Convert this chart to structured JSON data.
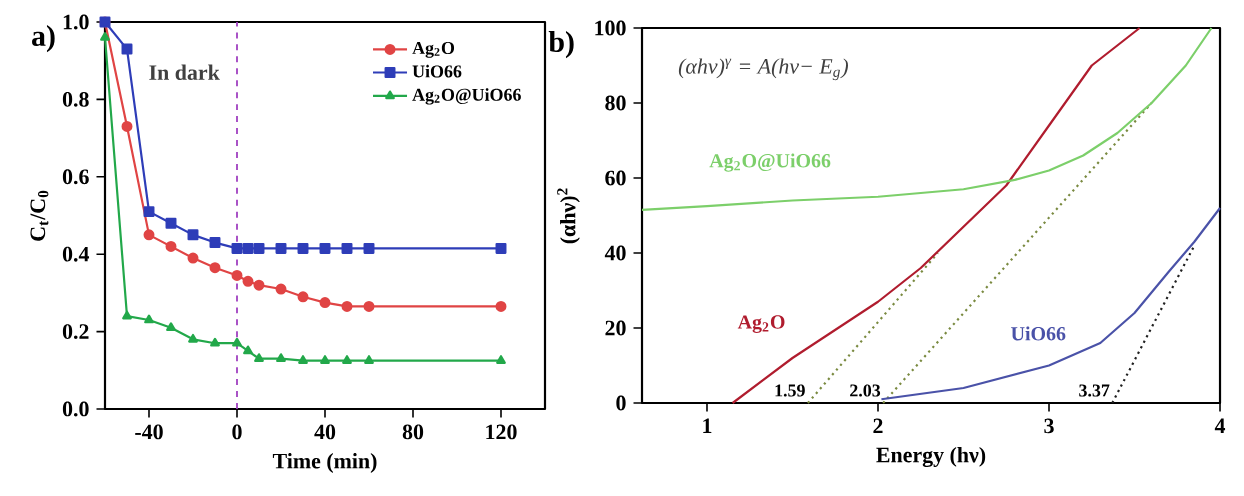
{
  "chart_data": [
    {
      "type": "line",
      "title": "a)",
      "xlabel": "Time (min)",
      "ylabel": "C$_{t}$/C$_{0}$",
      "x": [
        -60,
        -50,
        -40,
        -30,
        -20,
        -10,
        0,
        5,
        10,
        20,
        30,
        40,
        50,
        60,
        120
      ],
      "series": [
        {
          "name": "Ag$_{2}$O@UiO66",
          "color": "#22a84a",
          "marker": "triangle",
          "values": [
            0.96,
            0.24,
            0.23,
            0.21,
            0.18,
            0.17,
            0.17,
            0.15,
            0.13,
            0.13,
            0.125,
            0.125,
            0.125,
            0.125,
            0.125
          ]
        },
        {
          "name": "UiO66",
          "color": "#2e3db8",
          "marker": "square",
          "values": [
            1.0,
            0.93,
            0.51,
            0.48,
            0.45,
            0.43,
            0.415,
            0.415,
            0.415,
            0.415,
            0.415,
            0.415,
            0.415,
            0.415,
            0.415
          ]
        },
        {
          "name": "Ag$_{2}$O",
          "color": "#e04444",
          "marker": "circle",
          "values": [
            1.0,
            0.73,
            0.45,
            0.42,
            0.39,
            0.365,
            0.345,
            0.33,
            0.32,
            0.31,
            0.29,
            0.275,
            0.265,
            0.265,
            0.265
          ]
        }
      ],
      "xlim": [
        -60,
        140
      ],
      "ylim": [
        0,
        1.0
      ],
      "xticks": [
        -40,
        0,
        40,
        80,
        120
      ],
      "yticks": [
        {
          "value": 0,
          "label": "0.0"
        },
        {
          "value": 0.2,
          "label": "0.2"
        },
        {
          "value": 0.4,
          "label": "0.4"
        },
        {
          "value": 0.6,
          "label": "0.6"
        },
        {
          "value": 0.8,
          "label": "0.8"
        },
        {
          "value": 1.0,
          "label": "1.0"
        }
      ],
      "ref_lines": [
        {
          "axis": "x",
          "value": 0,
          "color": "#a040c0",
          "line_style": "dashed"
        }
      ],
      "annotations": [
        "In dark"
      ],
      "legend": "top right"
    },
    {
      "type": "line",
      "title": "b)",
      "xlabel": "Energy (hν)",
      "ylabel": "(αhν)$^{2}$",
      "series": [
        {
          "name": "Ag$_{2}$O@UiO66",
          "color": "#7ccf6a",
          "x": [
            0.62,
            1,
            1.5,
            2,
            2.5,
            2.8,
            3,
            3.2,
            3.4,
            3.6,
            3.8,
            3.95
          ],
          "values": [
            51.5,
            52.5,
            54,
            55,
            57,
            59.5,
            62,
            66,
            72,
            80,
            90,
            100
          ]
        },
        {
          "name": "Ag$_{2}$O",
          "color": "#b01c2e",
          "x": [
            1.15,
            1.5,
            2,
            2.25,
            2.5,
            2.75,
            3,
            3.25,
            3.53
          ],
          "values": [
            0,
            12,
            27,
            36,
            47,
            58,
            74,
            90,
            100
          ]
        },
        {
          "name": "UiO66",
          "color": "#4a52a8",
          "x": [
            2.02,
            2.5,
            3,
            3.3,
            3.5,
            3.7,
            3.85,
            4
          ],
          "values": [
            1,
            4,
            10,
            16,
            24,
            35,
            43,
            52
          ]
        },
        {
          "type": "line",
          "line_style": "dotted",
          "color": "#7a8a40",
          "x": [
            1.59,
            2.35
          ],
          "values": [
            0,
            40
          ]
        },
        {
          "type": "line",
          "line_style": "dotted",
          "color": "#7a8a40",
          "x": [
            2.03,
            3.6
          ],
          "values": [
            0,
            80
          ]
        },
        {
          "type": "line",
          "line_style": "dotted",
          "color": "#202020",
          "x": [
            3.37,
            3.85
          ],
          "values": [
            0,
            42
          ]
        }
      ],
      "xlim": [
        0.62,
        4
      ],
      "ylim": [
        0,
        100
      ],
      "xticks": [
        1,
        2,
        3,
        4
      ],
      "yticks": [
        0,
        20,
        40,
        60,
        80,
        100
      ],
      "annotations": [
        "(αhν)$^{γ}$ = A(hν− E$_{g}$)",
        {
          "text": "1.59",
          "x": 1.59,
          "y": 0
        },
        {
          "text": "2.03",
          "x": 2.03,
          "y": 0
        },
        {
          "text": "3.37",
          "x": 3.37,
          "y": 0
        }
      ],
      "legend": false
    }
  ]
}
